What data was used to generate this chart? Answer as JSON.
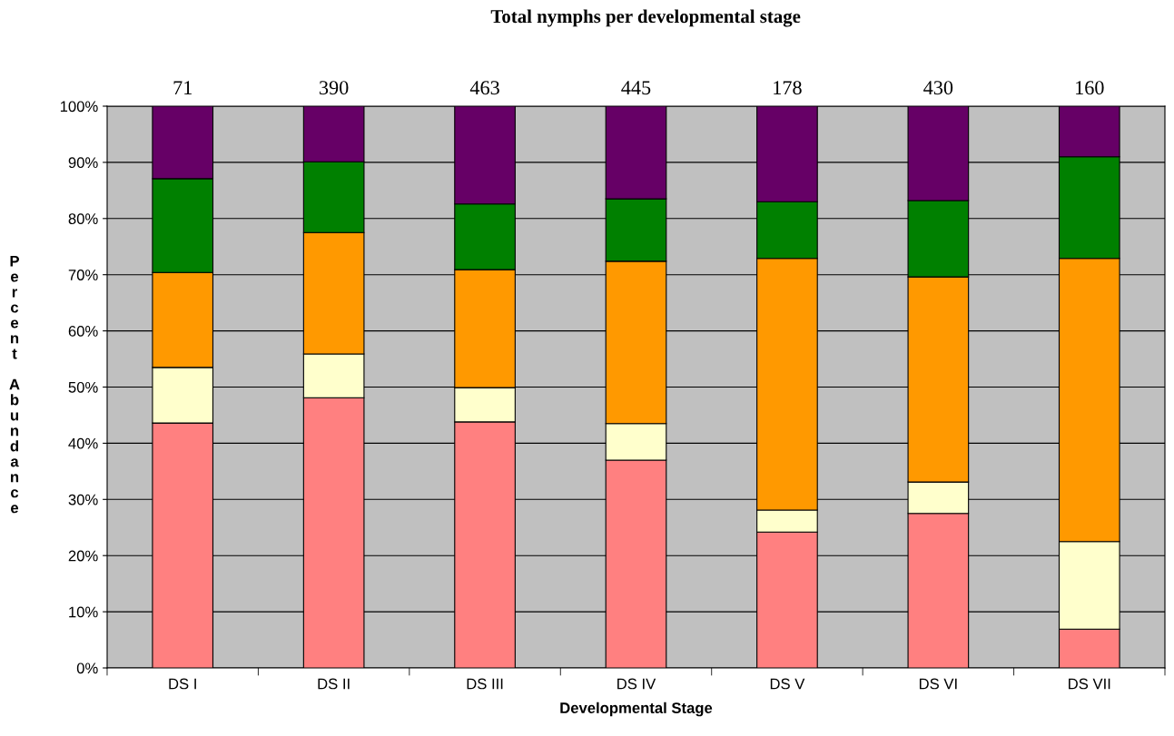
{
  "chart_data": {
    "type": "bar",
    "stacked": true,
    "title": "Total nymphs per developmental stage",
    "xlabel": "Developmental Stage",
    "ylabel": "Percent Abundance",
    "categories": [
      "DS I",
      "DS II",
      "DS III",
      "DS IV",
      "DS V",
      "DS VI",
      "DS VII"
    ],
    "series": [
      {
        "color": "#ff8080",
        "values": [
          43.6,
          48.1,
          43.8,
          37.0,
          24.2,
          27.5,
          6.9
        ]
      },
      {
        "color": "#ffffcc",
        "values": [
          9.9,
          7.8,
          6.1,
          6.5,
          3.9,
          5.6,
          15.6
        ]
      },
      {
        "color": "#ff9900",
        "values": [
          16.9,
          21.6,
          21.0,
          28.9,
          44.8,
          36.5,
          50.4
        ]
      },
      {
        "color": "#008000",
        "values": [
          16.7,
          12.6,
          11.7,
          11.1,
          10.1,
          13.6,
          18.1
        ]
      },
      {
        "color": "#660066",
        "values": [
          12.9,
          9.9,
          17.4,
          16.5,
          17.0,
          16.8,
          9.0
        ]
      }
    ],
    "annotations": [
      {
        "text": "71",
        "x": "DS I",
        "y": 100
      },
      {
        "text": "390",
        "x": "DS II",
        "y": 100
      },
      {
        "text": "463",
        "x": "DS III",
        "y": 100
      },
      {
        "text": "445",
        "x": "DS IV",
        "y": 100
      },
      {
        "text": "178",
        "x": "DS V",
        "y": 100
      },
      {
        "text": "430",
        "x": "DS VI",
        "y": 100
      },
      {
        "text": "160",
        "x": "DS VII",
        "y": 100
      }
    ],
    "ylim": [
      0,
      100
    ],
    "yticks": [
      {
        "value": 0,
        "label": "0%"
      },
      {
        "value": 10,
        "label": "10%"
      },
      {
        "value": 20,
        "label": "20%"
      },
      {
        "value": 30,
        "label": "30%"
      },
      {
        "value": 40,
        "label": "40%"
      },
      {
        "value": 50,
        "label": "50%"
      },
      {
        "value": 60,
        "label": "60%"
      },
      {
        "value": 70,
        "label": "70%"
      },
      {
        "value": 80,
        "label": "80%"
      },
      {
        "value": 90,
        "label": "90%"
      },
      {
        "value": 100,
        "label": "100%"
      }
    ],
    "grid": "y",
    "legend": false
  }
}
